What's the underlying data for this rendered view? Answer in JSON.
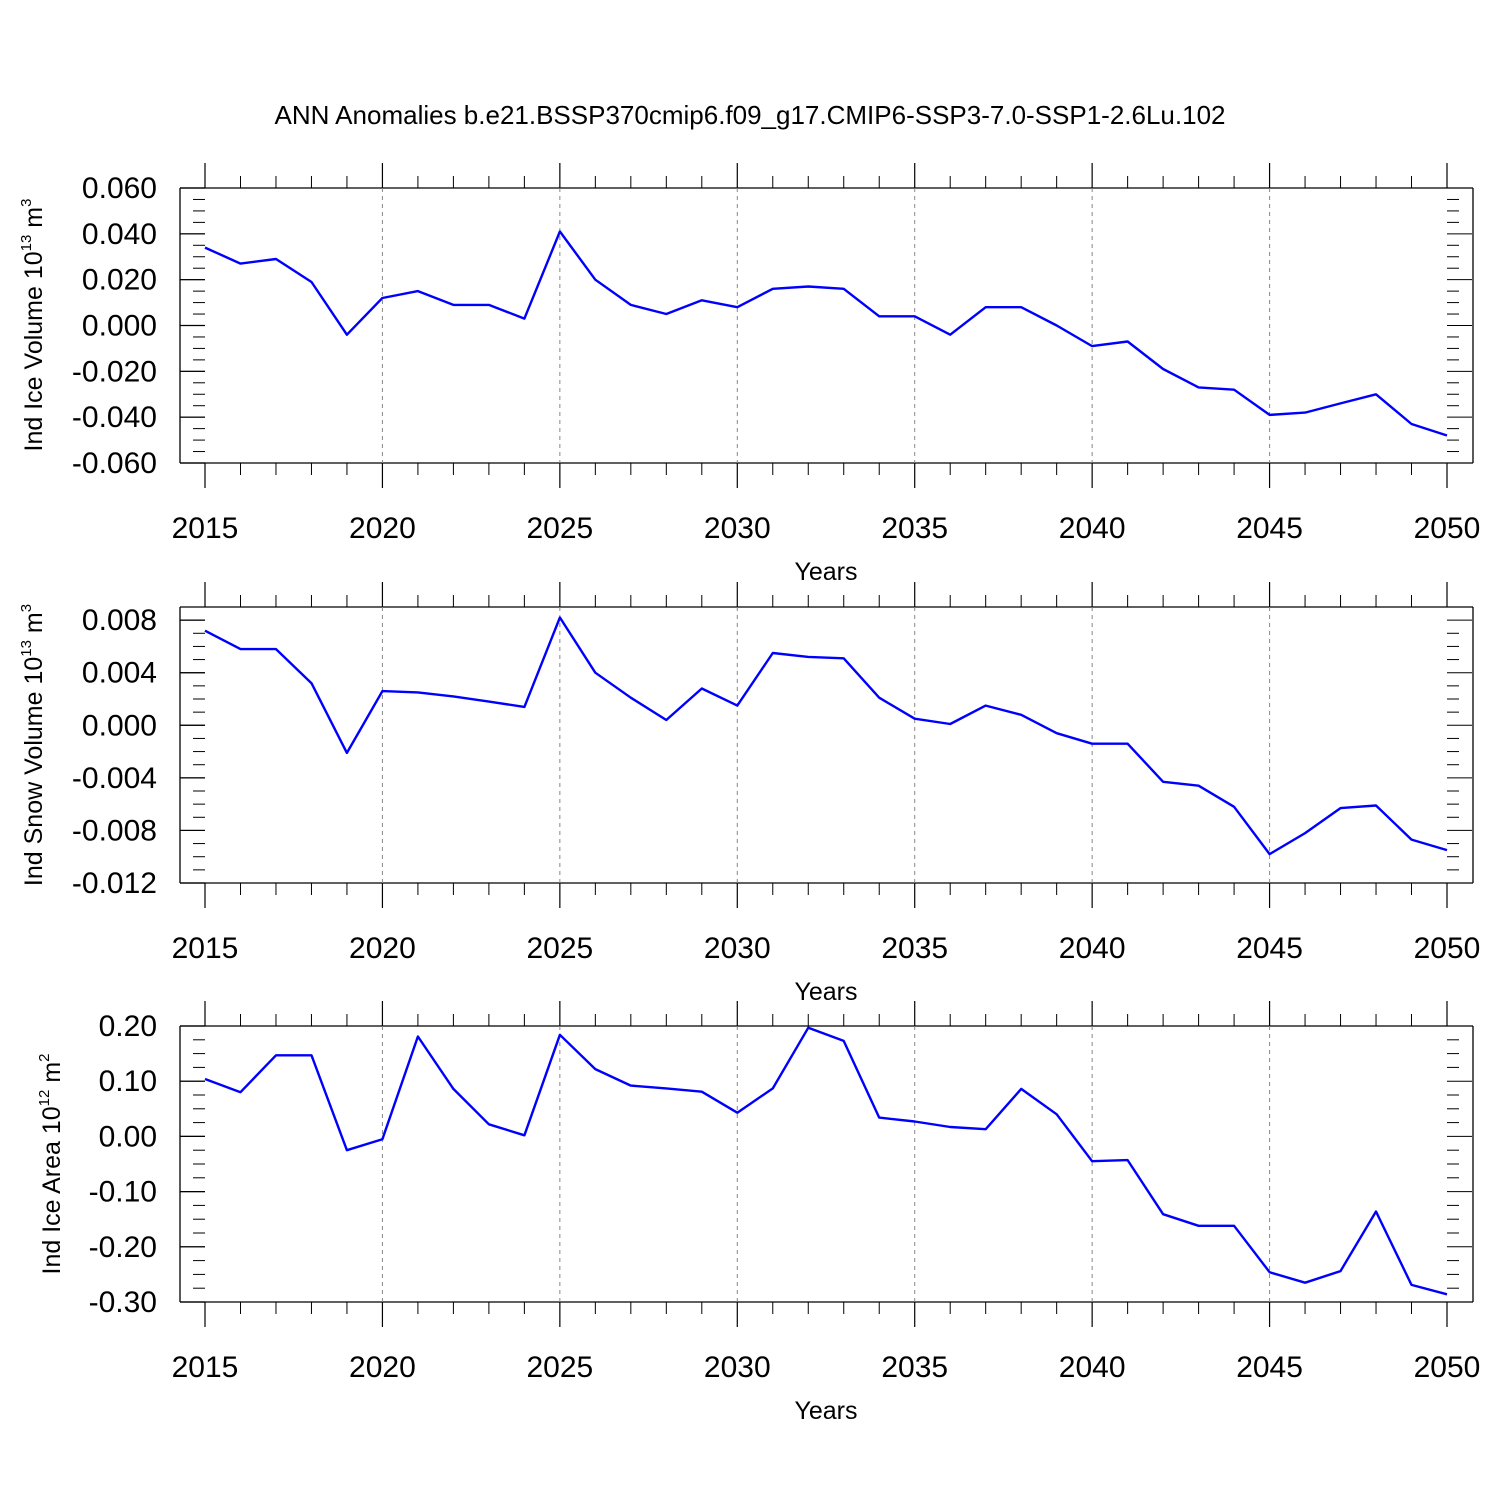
{
  "title": "ANN Anomalies b.e21.BSSP370cmip6.f09_g17.CMIP6-SSP3-7.0-SSP1-2.6Lu.102",
  "line_color": "#0000ff",
  "chart_data": [
    {
      "type": "line",
      "xlabel": "Years",
      "ylabel": {
        "text": "Ind Ice Volume 10",
        "sup": "13",
        "unit": " m",
        "unit_sup": "3"
      },
      "xlim": [
        2015,
        2050
      ],
      "ylim": [
        -0.06,
        0.06
      ],
      "x_ticks": [
        "2015",
        "2020",
        "2025",
        "2030",
        "2035",
        "2040",
        "2045",
        "2050"
      ],
      "y_ticks": [
        "0.060",
        "0.040",
        "0.020",
        "0.000",
        "-0.020",
        "-0.040",
        "-0.060"
      ],
      "y_tick_values": [
        0.06,
        0.04,
        0.02,
        0.0,
        -0.02,
        -0.04,
        -0.06
      ],
      "grid": "vertical dashed at major x ticks",
      "series": [
        {
          "x": [
            2015,
            2016,
            2017,
            2018,
            2019,
            2020,
            2021,
            2022,
            2023,
            2024,
            2025,
            2026,
            2027,
            2028,
            2029,
            2030,
            2031,
            2032,
            2033,
            2034,
            2035,
            2036,
            2037,
            2038,
            2039,
            2040,
            2041,
            2042,
            2043,
            2044,
            2045,
            2046,
            2047,
            2048,
            2049,
            2050
          ],
          "values": [
            0.034,
            0.027,
            0.029,
            0.019,
            -0.004,
            0.012,
            0.015,
            0.009,
            0.009,
            0.003,
            0.041,
            0.02,
            0.009,
            0.005,
            0.011,
            0.008,
            0.016,
            0.017,
            0.016,
            0.004,
            0.004,
            -0.004,
            0.008,
            0.008,
            0.0,
            -0.009,
            -0.007,
            -0.019,
            -0.027,
            -0.028,
            -0.039,
            -0.038,
            -0.034,
            -0.03,
            -0.043,
            -0.048
          ]
        }
      ]
    },
    {
      "type": "line",
      "xlabel": "Years",
      "ylabel": {
        "text": "Ind Snow Volume 10",
        "sup": "13",
        "unit": " m",
        "unit_sup": "3"
      },
      "xlim": [
        2015,
        2050
      ],
      "ylim": [
        -0.012,
        0.009
      ],
      "x_ticks": [
        "2015",
        "2020",
        "2025",
        "2030",
        "2035",
        "2040",
        "2045",
        "2050"
      ],
      "y_ticks": [
        "0.008",
        "0.004",
        "0.000",
        "-0.004",
        "-0.008",
        "-0.012"
      ],
      "y_tick_values": [
        0.008,
        0.004,
        0.0,
        -0.004,
        -0.008,
        -0.012
      ],
      "grid": "vertical dashed at major x ticks",
      "series": [
        {
          "x": [
            2015,
            2016,
            2017,
            2018,
            2019,
            2020,
            2021,
            2022,
            2023,
            2024,
            2025,
            2026,
            2027,
            2028,
            2029,
            2030,
            2031,
            2032,
            2033,
            2034,
            2035,
            2036,
            2037,
            2038,
            2039,
            2040,
            2041,
            2042,
            2043,
            2044,
            2045,
            2046,
            2047,
            2048,
            2049,
            2050
          ],
          "values": [
            0.0072,
            0.0058,
            0.0058,
            0.0032,
            -0.0021,
            0.0026,
            0.0025,
            0.0022,
            0.0018,
            0.0014,
            0.0082,
            0.004,
            0.0021,
            0.0004,
            0.0028,
            0.0015,
            0.0055,
            0.0052,
            0.0051,
            0.0021,
            0.0005,
            0.0001,
            0.0015,
            0.0008,
            -0.0006,
            -0.0014,
            -0.0014,
            -0.0043,
            -0.0046,
            -0.0062,
            -0.0098,
            -0.0082,
            -0.0063,
            -0.0061,
            -0.0087,
            -0.0095
          ]
        }
      ]
    },
    {
      "type": "line",
      "xlabel": "Years",
      "ylabel": {
        "text": "Ind Ice Area 10",
        "sup": "12",
        "unit": " m",
        "unit_sup": "2"
      },
      "xlim": [
        2015,
        2050
      ],
      "ylim": [
        -0.3,
        0.2
      ],
      "x_ticks": [
        "2015",
        "2020",
        "2025",
        "2030",
        "2035",
        "2040",
        "2045",
        "2050"
      ],
      "y_ticks": [
        "0.20",
        "0.10",
        "0.00",
        "-0.10",
        "-0.20",
        "-0.30"
      ],
      "y_tick_values": [
        0.2,
        0.1,
        0.0,
        -0.1,
        -0.2,
        -0.3
      ],
      "grid": "vertical dashed at major x ticks",
      "series": [
        {
          "x": [
            2015,
            2016,
            2017,
            2018,
            2019,
            2020,
            2021,
            2022,
            2023,
            2024,
            2025,
            2026,
            2027,
            2028,
            2029,
            2030,
            2031,
            2032,
            2033,
            2034,
            2035,
            2036,
            2037,
            2038,
            2039,
            2040,
            2041,
            2042,
            2043,
            2044,
            2045,
            2046,
            2047,
            2048,
            2049,
            2050
          ],
          "values": [
            0.104,
            0.08,
            0.147,
            0.147,
            -0.025,
            -0.005,
            0.181,
            0.086,
            0.022,
            0.002,
            0.184,
            0.122,
            0.092,
            0.087,
            0.081,
            0.043,
            0.087,
            0.197,
            0.173,
            0.034,
            0.027,
            0.017,
            0.013,
            0.086,
            0.04,
            -0.045,
            -0.043,
            -0.141,
            -0.162,
            -0.162,
            -0.246,
            -0.265,
            -0.244,
            -0.136,
            -0.269,
            -0.286
          ]
        }
      ]
    }
  ]
}
